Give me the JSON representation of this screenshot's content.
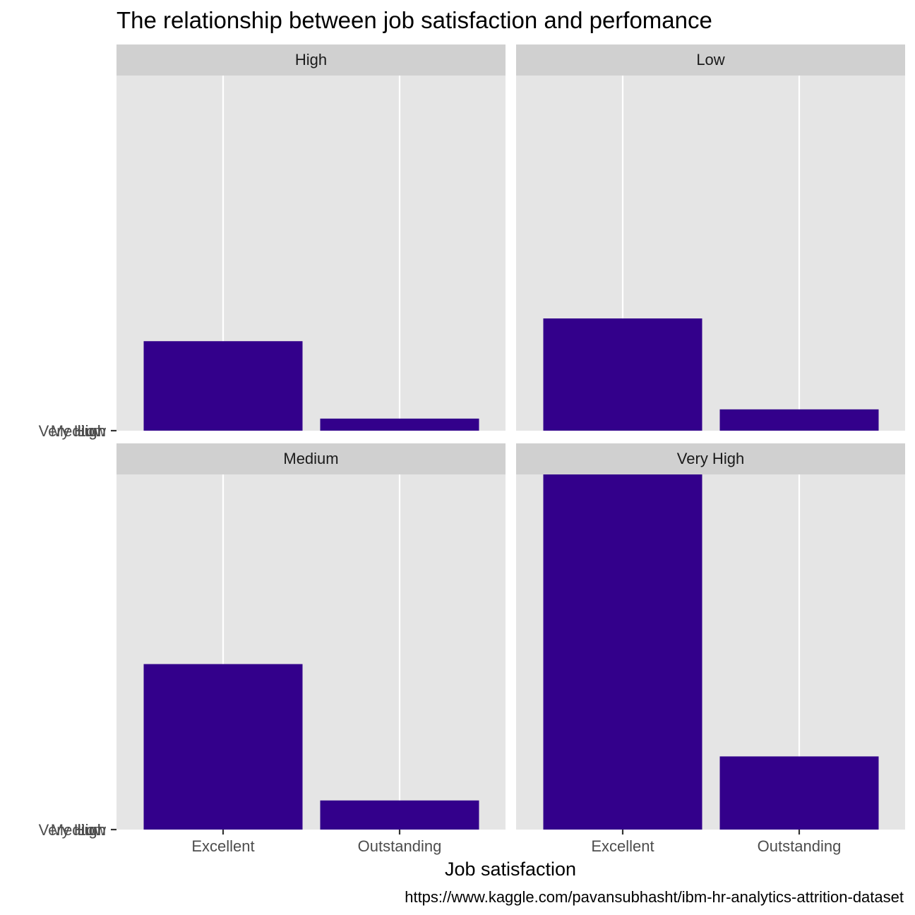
{
  "chart_data": {
    "type": "bar",
    "facet": "wrap",
    "title": "The relationship between job satisfaction and perfomance",
    "xlabel": "Job satisfaction",
    "ylabel": "",
    "caption": "https://www.kaggle.com/pavansubhasht/ibm-hr-analytics-attrition-dataset",
    "categories": [
      "Excellent",
      "Outstanding"
    ],
    "ytick_labels": [
      "Very High",
      "Medium",
      "Low",
      "High"
    ],
    "bar_color": "#33008B",
    "panel_background": "#E5E5E5",
    "strip_background": "#D0D0D0",
    "ylim": [
      0,
      1
    ],
    "panels": [
      {
        "name": "High",
        "values": [
          0.252,
          0.034
        ]
      },
      {
        "name": "Low",
        "values": [
          0.316,
          0.06
        ]
      },
      {
        "name": "Medium",
        "values": [
          0.466,
          0.082
        ]
      },
      {
        "name": "Very High",
        "values": [
          1.0,
          0.206
        ]
      }
    ],
    "grid": true,
    "legend": "none"
  }
}
